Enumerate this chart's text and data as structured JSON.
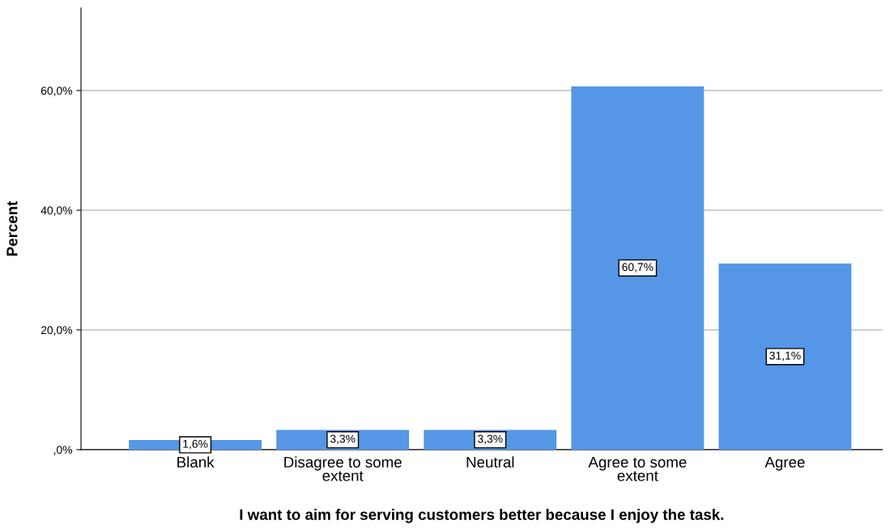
{
  "chart_data": {
    "type": "bar",
    "xlabel": "I want to aim for serving customers better because I enjoy the task.",
    "ylabel": "Percent",
    "categories": [
      "Blank",
      "Disagree to some extent",
      "Neutral",
      "Agree to some extent",
      "Agree"
    ],
    "values": [
      1.6,
      3.3,
      3.3,
      60.7,
      31.1
    ],
    "value_labels": [
      "1,6%",
      "3,3%",
      "3,3%",
      "60,7%",
      "31,1%"
    ],
    "color": "#5596e6",
    "ylim": [
      0,
      73.8
    ],
    "yticks": [
      {
        "value": 0,
        "label": ",0%"
      },
      {
        "value": 20,
        "label": "20,0%"
      },
      {
        "value": 40,
        "label": "40,0%"
      },
      {
        "value": 60,
        "label": "60,0%"
      }
    ],
    "grid": "y",
    "legend": false
  }
}
